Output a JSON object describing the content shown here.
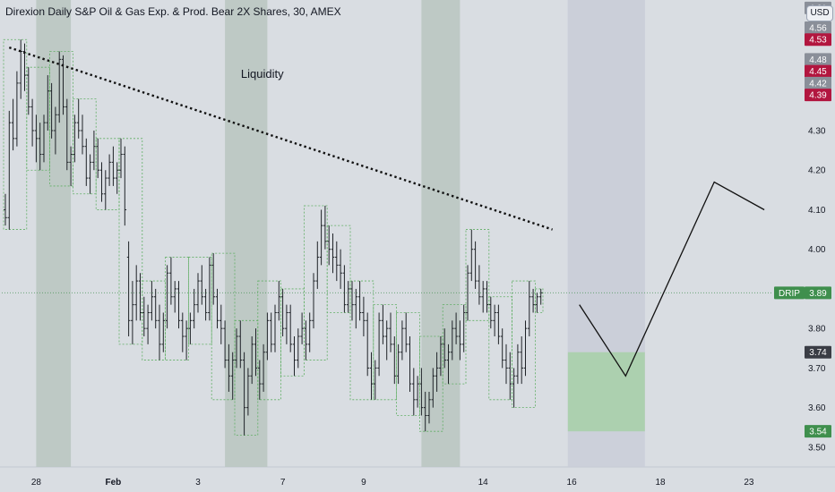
{
  "header": {
    "title": "Direxion Daily S&P Oil & Gas Exp. & Prod. Bear 2X Shares, 30, AMEX",
    "currency": "USD"
  },
  "colors": {
    "background": "#d9dde2",
    "candle": "#1f2328",
    "session_band": "#b9c6c0",
    "box_outline": "#5fae63",
    "trendline": "#111111",
    "target_zone": "#a9cfaa",
    "projection_zone": "#c9ced8",
    "tag_red": "#b2163f",
    "tag_gray": "#8a8f99",
    "tag_dark": "#3a3d45",
    "tag_green": "#3f8f4d"
  },
  "chart_data": {
    "type": "candlestick",
    "symbol": "DRIP",
    "interval": "30",
    "exchange": "AMEX",
    "y_axis": {
      "range": [
        3.45,
        4.63
      ],
      "ticks": [
        "3.50",
        "3.60",
        "3.70",
        "3.80",
        "4.00",
        "4.10",
        "4.20",
        "4.30"
      ]
    },
    "x_axis": {
      "labels": [
        {
          "text": "28",
          "bold": false
        },
        {
          "text": "Feb",
          "bold": true
        },
        {
          "text": "3",
          "bold": false
        },
        {
          "text": "7",
          "bold": false
        },
        {
          "text": "9",
          "bold": false
        },
        {
          "text": "14",
          "bold": false
        },
        {
          "text": "16",
          "bold": false
        },
        {
          "text": "18",
          "bold": false
        },
        {
          "text": "23",
          "bold": false
        }
      ]
    },
    "price_tags": [
      {
        "value": 4.61,
        "label": "4.61",
        "style": "gray"
      },
      {
        "value": 4.56,
        "label": "4.56",
        "style": "gray"
      },
      {
        "value": 4.53,
        "label": "4.53",
        "style": "red"
      },
      {
        "value": 4.48,
        "label": "4.48",
        "style": "gray"
      },
      {
        "value": 4.45,
        "label": "4.45",
        "style": "red"
      },
      {
        "value": 4.42,
        "label": "4.42",
        "style": "gray"
      },
      {
        "value": 4.39,
        "label": "4.39",
        "style": "red"
      },
      {
        "value": 3.74,
        "label": "3.74",
        "style": "dark"
      },
      {
        "value": 3.54,
        "label": "3.54",
        "style": "green"
      }
    ],
    "last_price": {
      "symbol": "DRIP",
      "value": 3.89,
      "label": "3.89"
    },
    "annotations": {
      "liquidity_label": "Liquidity",
      "trendline": {
        "from": {
          "bar": 1,
          "price": 4.51
        },
        "to": {
          "bar": 142,
          "price": 4.05
        }
      },
      "target_zone": {
        "bar_from": 146,
        "bar_to": 166,
        "price_top": 3.74,
        "price_bottom": 3.54
      },
      "projection_zone": {
        "bar_from": 146,
        "bar_to": 166,
        "price_top": 4.63,
        "price_bottom": 3.74
      },
      "projection_path": [
        {
          "bar": 149,
          "price": 3.86
        },
        {
          "bar": 161,
          "price": 3.68
        },
        {
          "bar": 184,
          "price": 4.17
        },
        {
          "bar": 197,
          "price": 4.1
        }
      ],
      "session_bands": [
        [
          8,
          17
        ],
        [
          57,
          68
        ],
        [
          108,
          118
        ],
        [
          146,
          166
        ]
      ]
    },
    "candles": [
      [
        4.1,
        4.14,
        4.06,
        4.08
      ],
      [
        4.08,
        4.35,
        4.05,
        4.32
      ],
      [
        4.32,
        4.38,
        4.25,
        4.28
      ],
      [
        4.28,
        4.45,
        4.26,
        4.42
      ],
      [
        4.42,
        4.53,
        4.38,
        4.5
      ],
      [
        4.5,
        4.52,
        4.4,
        4.44
      ],
      [
        4.44,
        4.46,
        4.34,
        4.36
      ],
      [
        4.36,
        4.38,
        4.26,
        4.3
      ],
      [
        4.3,
        4.34,
        4.22,
        4.28
      ],
      [
        4.28,
        4.32,
        4.2,
        4.24
      ],
      [
        4.24,
        4.34,
        4.22,
        4.32
      ],
      [
        4.32,
        4.44,
        4.3,
        4.4
      ],
      [
        4.4,
        4.42,
        4.28,
        4.3
      ],
      [
        4.3,
        4.36,
        4.24,
        4.34
      ],
      [
        4.34,
        4.5,
        4.32,
        4.48
      ],
      [
        4.48,
        4.49,
        4.34,
        4.36
      ],
      [
        4.36,
        4.38,
        4.2,
        4.22
      ],
      [
        4.22,
        4.26,
        4.16,
        4.24
      ],
      [
        4.24,
        4.34,
        4.22,
        4.32
      ],
      [
        4.32,
        4.38,
        4.28,
        4.3
      ],
      [
        4.3,
        4.34,
        4.24,
        4.26
      ],
      [
        4.26,
        4.28,
        4.16,
        4.18
      ],
      [
        4.18,
        4.24,
        4.14,
        4.22
      ],
      [
        4.22,
        4.3,
        4.2,
        4.26
      ],
      [
        4.26,
        4.28,
        4.18,
        4.2
      ],
      [
        4.2,
        4.22,
        4.12,
        4.14
      ],
      [
        4.14,
        4.2,
        4.1,
        4.18
      ],
      [
        4.18,
        4.24,
        4.16,
        4.22
      ],
      [
        4.22,
        4.26,
        4.16,
        4.18
      ],
      [
        4.18,
        4.22,
        4.14,
        4.2
      ],
      [
        4.2,
        4.28,
        4.18,
        4.24
      ],
      [
        4.24,
        4.26,
        4.06,
        4.1
      ],
      [
        3.98,
        4.02,
        3.78,
        3.82
      ],
      [
        3.82,
        3.92,
        3.76,
        3.86
      ],
      [
        3.86,
        3.96,
        3.82,
        3.92
      ],
      [
        3.92,
        3.94,
        3.82,
        3.84
      ],
      [
        3.84,
        3.88,
        3.78,
        3.8
      ],
      [
        3.8,
        3.86,
        3.76,
        3.84
      ],
      [
        3.84,
        3.92,
        3.82,
        3.88
      ],
      [
        3.88,
        3.9,
        3.8,
        3.82
      ],
      [
        3.82,
        3.86,
        3.72,
        3.76
      ],
      [
        3.76,
        3.84,
        3.74,
        3.82
      ],
      [
        3.82,
        3.96,
        3.8,
        3.94
      ],
      [
        3.94,
        3.98,
        3.86,
        3.88
      ],
      [
        3.88,
        3.92,
        3.84,
        3.9
      ],
      [
        3.9,
        3.92,
        3.8,
        3.82
      ],
      [
        3.82,
        3.84,
        3.74,
        3.78
      ],
      [
        3.78,
        3.82,
        3.72,
        3.8
      ],
      [
        3.8,
        3.84,
        3.76,
        3.82
      ],
      [
        3.82,
        3.9,
        3.8,
        3.86
      ],
      [
        3.86,
        3.94,
        3.84,
        3.92
      ],
      [
        3.92,
        3.96,
        3.86,
        3.88
      ],
      [
        3.88,
        3.9,
        3.82,
        3.84
      ],
      [
        3.84,
        3.98,
        3.82,
        3.96
      ],
      [
        3.96,
        3.99,
        3.86,
        3.88
      ],
      [
        3.88,
        3.9,
        3.8,
        3.82
      ],
      [
        3.82,
        3.86,
        3.76,
        3.8
      ],
      [
        3.8,
        3.82,
        3.7,
        3.72
      ],
      [
        3.72,
        3.76,
        3.64,
        3.68
      ],
      [
        3.68,
        3.74,
        3.62,
        3.72
      ],
      [
        3.72,
        3.8,
        3.7,
        3.78
      ],
      [
        3.78,
        3.82,
        3.7,
        3.72
      ],
      [
        3.72,
        3.74,
        3.53,
        3.6
      ],
      [
        3.6,
        3.7,
        3.58,
        3.68
      ],
      [
        3.68,
        3.78,
        3.66,
        3.76
      ],
      [
        3.76,
        3.8,
        3.68,
        3.7
      ],
      [
        3.7,
        3.72,
        3.62,
        3.66
      ],
      [
        3.66,
        3.76,
        3.64,
        3.74
      ],
      [
        3.74,
        3.84,
        3.72,
        3.82
      ],
      [
        3.82,
        3.84,
        3.74,
        3.76
      ],
      [
        3.76,
        3.86,
        3.74,
        3.84
      ],
      [
        3.84,
        3.92,
        3.82,
        3.88
      ],
      [
        3.88,
        3.9,
        3.78,
        3.8
      ],
      [
        3.8,
        3.86,
        3.76,
        3.84
      ],
      [
        3.84,
        3.86,
        3.74,
        3.76
      ],
      [
        3.76,
        3.78,
        3.68,
        3.72
      ],
      [
        3.72,
        3.8,
        3.7,
        3.78
      ],
      [
        3.78,
        3.84,
        3.76,
        3.8
      ],
      [
        3.8,
        3.82,
        3.72,
        3.76
      ],
      [
        3.76,
        3.84,
        3.74,
        3.82
      ],
      [
        3.82,
        3.94,
        3.8,
        3.92
      ],
      [
        3.92,
        4.02,
        3.9,
        3.98
      ],
      [
        3.98,
        4.1,
        3.96,
        4.06
      ],
      [
        4.06,
        4.11,
        4.0,
        4.02
      ],
      [
        4.02,
        4.06,
        3.96,
        4.0
      ],
      [
        4.0,
        4.04,
        3.94,
        3.98
      ],
      [
        3.98,
        4.02,
        3.92,
        3.96
      ],
      [
        3.96,
        4.0,
        3.9,
        3.94
      ],
      [
        3.94,
        3.96,
        3.84,
        3.86
      ],
      [
        3.86,
        3.92,
        3.84,
        3.9
      ],
      [
        3.9,
        3.92,
        3.82,
        3.86
      ],
      [
        3.86,
        3.9,
        3.8,
        3.88
      ],
      [
        3.88,
        3.92,
        3.82,
        3.84
      ],
      [
        3.84,
        3.88,
        3.78,
        3.82
      ],
      [
        3.82,
        3.84,
        3.68,
        3.7
      ],
      [
        3.7,
        3.74,
        3.62,
        3.66
      ],
      [
        3.66,
        3.72,
        3.62,
        3.7
      ],
      [
        3.7,
        3.84,
        3.68,
        3.82
      ],
      [
        3.82,
        3.86,
        3.76,
        3.78
      ],
      [
        3.78,
        3.82,
        3.72,
        3.8
      ],
      [
        3.8,
        3.84,
        3.74,
        3.76
      ],
      [
        3.76,
        3.78,
        3.66,
        3.68
      ],
      [
        3.68,
        3.76,
        3.66,
        3.74
      ],
      [
        3.74,
        3.82,
        3.72,
        3.8
      ],
      [
        3.8,
        3.84,
        3.74,
        3.76
      ],
      [
        3.76,
        3.78,
        3.64,
        3.66
      ],
      [
        3.66,
        3.7,
        3.58,
        3.62
      ],
      [
        3.62,
        3.68,
        3.6,
        3.66
      ],
      [
        3.66,
        3.7,
        3.58,
        3.6
      ],
      [
        3.6,
        3.64,
        3.54,
        3.58
      ],
      [
        3.58,
        3.64,
        3.56,
        3.62
      ],
      [
        3.62,
        3.7,
        3.6,
        3.68
      ],
      [
        3.68,
        3.74,
        3.64,
        3.7
      ],
      [
        3.7,
        3.78,
        3.68,
        3.76
      ],
      [
        3.76,
        3.8,
        3.7,
        3.72
      ],
      [
        3.72,
        3.76,
        3.66,
        3.74
      ],
      [
        3.74,
        3.82,
        3.72,
        3.8
      ],
      [
        3.8,
        3.84,
        3.76,
        3.78
      ],
      [
        3.78,
        3.82,
        3.72,
        3.76
      ],
      [
        3.76,
        3.86,
        3.74,
        3.84
      ],
      [
        3.84,
        3.96,
        3.82,
        3.94
      ],
      [
        3.94,
        4.05,
        3.92,
        4.0
      ],
      [
        4.0,
        4.02,
        3.9,
        3.92
      ],
      [
        3.92,
        3.96,
        3.86,
        3.88
      ],
      [
        3.88,
        3.92,
        3.84,
        3.9
      ],
      [
        3.9,
        3.92,
        3.84,
        3.86
      ],
      [
        3.86,
        3.88,
        3.8,
        3.82
      ],
      [
        3.82,
        3.86,
        3.78,
        3.84
      ],
      [
        3.84,
        3.86,
        3.76,
        3.78
      ],
      [
        3.78,
        3.8,
        3.7,
        3.72
      ],
      [
        3.72,
        3.76,
        3.66,
        3.7
      ],
      [
        3.7,
        3.74,
        3.62,
        3.66
      ],
      [
        3.66,
        3.7,
        3.6,
        3.68
      ],
      [
        3.68,
        3.76,
        3.66,
        3.74
      ],
      [
        3.74,
        3.78,
        3.66,
        3.7
      ],
      [
        3.7,
        3.82,
        3.68,
        3.8
      ],
      [
        3.8,
        3.92,
        3.78,
        3.88
      ],
      [
        3.88,
        3.9,
        3.84,
        3.86
      ],
      [
        3.86,
        3.89,
        3.84,
        3.88
      ],
      [
        3.88,
        3.9,
        3.86,
        3.89
      ]
    ]
  }
}
